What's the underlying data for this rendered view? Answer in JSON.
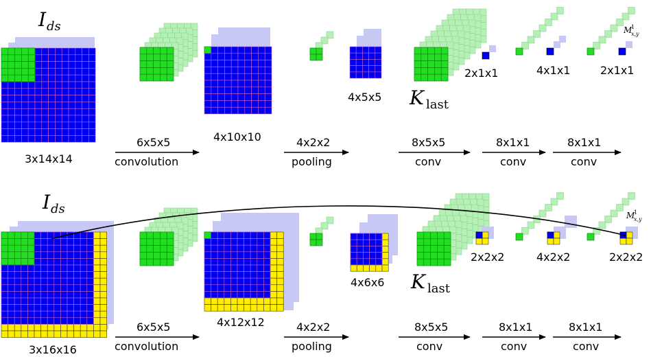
{
  "colors": {
    "blue": "#0000ee",
    "green": "#22dd22",
    "yellow": "#ffee00",
    "faint_blue": "#c8c8f4",
    "faint_green": "#b6f0b6",
    "grid_line_blue": "#d060d0",
    "grid_line_dark": "#000000"
  },
  "top_row": {
    "input_symbol": "I",
    "input_symbol_sub": "ds",
    "dims": {
      "input": "3x14x14",
      "conv1_out": "4x10x10",
      "pool_out": "4x5x5",
      "fc1_out": "2x1x1",
      "fc2_out": "4x1x1",
      "fc3_out": "2x1x1"
    },
    "klast_symbol": "K",
    "klast_sub": "last",
    "map_symbol": "M",
    "map_sub": "x,y",
    "map_sup": "1",
    "ops": [
      {
        "top": "6x5x5",
        "bottom": "convolution"
      },
      {
        "top": "4x2x2",
        "bottom": "pooling"
      },
      {
        "top": "8x5x5",
        "bottom": "conv"
      },
      {
        "top": "8x1x1",
        "bottom": "conv"
      },
      {
        "top": "8x1x1",
        "bottom": "conv"
      }
    ]
  },
  "bottom_row": {
    "input_symbol": "I",
    "input_symbol_sub": "ds",
    "dims": {
      "input": "3x16x16",
      "conv1_out": "4x12x12",
      "pool_out": "4x6x6",
      "fc1_out": "2x2x2",
      "fc2_out": "4x2x2",
      "fc3_out": "2x2x2"
    },
    "klast_symbol": "K",
    "klast_sub": "last",
    "map_symbol": "M",
    "map_sub": "x,y",
    "map_sup": "1",
    "ops": [
      {
        "top": "6x5x5",
        "bottom": "convolution"
      },
      {
        "top": "4x2x2",
        "bottom": "pooling"
      },
      {
        "top": "8x5x5",
        "bottom": "conv"
      },
      {
        "top": "8x1x1",
        "bottom": "conv"
      },
      {
        "top": "8x1x1",
        "bottom": "conv"
      }
    ]
  }
}
